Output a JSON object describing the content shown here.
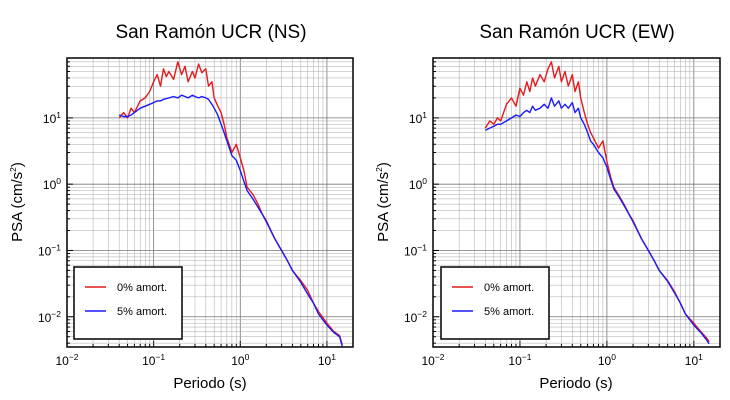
{
  "chart_data": [
    {
      "type": "line",
      "title": "San Ramón UCR (NS)",
      "xlabel": "Periodo (s)",
      "ylabel": "PSA (cm/s²)",
      "ylabel_main": "PSA (cm/s",
      "ylabel_sup": "2",
      "ylabel_close": ")",
      "xscale": "log",
      "yscale": "log",
      "xlim": [
        0.01,
        20
      ],
      "ylim": [
        0.0035,
        80
      ],
      "grid": true,
      "legend_position": "bottom-left",
      "xticks": [
        {
          "base": "10",
          "exp": "−2",
          "value": 0.01
        },
        {
          "base": "10",
          "exp": "−1",
          "value": 0.1
        },
        {
          "base": "10",
          "exp": "0",
          "value": 1
        },
        {
          "base": "10",
          "exp": "1",
          "value": 10
        }
      ],
      "yticks": [
        {
          "base": "10",
          "exp": "−2",
          "value": 0.01
        },
        {
          "base": "10",
          "exp": "−1",
          "value": 0.1
        },
        {
          "base": "10",
          "exp": "0",
          "value": 1
        },
        {
          "base": "10",
          "exp": "1",
          "value": 10
        }
      ],
      "x": [
        0.04,
        0.045,
        0.05,
        0.055,
        0.06,
        0.07,
        0.08,
        0.09,
        0.1,
        0.11,
        0.12,
        0.13,
        0.14,
        0.15,
        0.17,
        0.19,
        0.21,
        0.23,
        0.25,
        0.28,
        0.3,
        0.33,
        0.36,
        0.4,
        0.43,
        0.47,
        0.5,
        0.55,
        0.6,
        0.65,
        0.7,
        0.8,
        0.9,
        1.0,
        1.1,
        1.2,
        1.4,
        1.6,
        1.8,
        2.0,
        2.5,
        3.0,
        3.5,
        4.0,
        5.0,
        6.0,
        7.0,
        8.0,
        10.0,
        12.0,
        14.0,
        15.0
      ],
      "series": [
        {
          "name": "0% amort.",
          "color": "#e41a1c",
          "values": [
            10,
            12,
            10,
            14,
            12,
            18,
            20,
            25,
            35,
            45,
            30,
            55,
            42,
            50,
            38,
            70,
            45,
            60,
            35,
            50,
            40,
            65,
            48,
            55,
            30,
            35,
            20,
            15,
            12,
            8,
            5,
            3,
            4,
            2.5,
            1.6,
            0.9,
            0.7,
            0.5,
            0.35,
            0.28,
            0.15,
            0.1,
            0.07,
            0.05,
            0.035,
            0.025,
            0.016,
            0.012,
            0.008,
            0.006,
            0.0052,
            0.0038
          ]
        },
        {
          "name": "5% amort.",
          "color": "#1a1aff",
          "values": [
            11,
            10.5,
            10.5,
            11,
            12,
            14,
            15,
            16,
            17,
            18,
            18,
            19,
            19.5,
            20,
            21,
            20,
            22,
            21,
            20,
            22,
            21,
            20,
            21,
            20,
            19,
            16,
            14,
            11,
            8,
            6,
            4.5,
            2.7,
            2.3,
            1.6,
            1.1,
            0.8,
            0.6,
            0.45,
            0.35,
            0.27,
            0.15,
            0.1,
            0.07,
            0.05,
            0.033,
            0.022,
            0.016,
            0.011,
            0.0075,
            0.0058,
            0.005,
            0.0036
          ]
        }
      ]
    },
    {
      "type": "line",
      "title": "San Ramón UCR (EW)",
      "xlabel": "Periodo (s)",
      "ylabel": "PSA (cm/s²)",
      "ylabel_main": "PSA (cm/s",
      "ylabel_sup": "2",
      "ylabel_close": ")",
      "xscale": "log",
      "yscale": "log",
      "xlim": [
        0.01,
        20
      ],
      "ylim": [
        0.0035,
        80
      ],
      "grid": true,
      "legend_position": "bottom-left",
      "xticks": [
        {
          "base": "10",
          "exp": "−2",
          "value": 0.01
        },
        {
          "base": "10",
          "exp": "−1",
          "value": 0.1
        },
        {
          "base": "10",
          "exp": "0",
          "value": 1
        },
        {
          "base": "10",
          "exp": "1",
          "value": 10
        }
      ],
      "yticks": [
        {
          "base": "10",
          "exp": "−2",
          "value": 0.01
        },
        {
          "base": "10",
          "exp": "−1",
          "value": 0.1
        },
        {
          "base": "10",
          "exp": "0",
          "value": 1
        },
        {
          "base": "10",
          "exp": "1",
          "value": 10
        }
      ],
      "x": [
        0.04,
        0.045,
        0.05,
        0.055,
        0.06,
        0.07,
        0.08,
        0.09,
        0.1,
        0.11,
        0.12,
        0.13,
        0.14,
        0.15,
        0.17,
        0.19,
        0.21,
        0.23,
        0.25,
        0.28,
        0.3,
        0.33,
        0.36,
        0.4,
        0.43,
        0.47,
        0.5,
        0.55,
        0.6,
        0.65,
        0.7,
        0.8,
        0.9,
        1.0,
        1.1,
        1.2,
        1.4,
        1.6,
        1.8,
        2.0,
        2.5,
        3.0,
        3.5,
        4.0,
        5.0,
        6.0,
        7.0,
        8.0,
        10.0,
        12.0,
        14.0,
        15.0
      ],
      "series": [
        {
          "name": "0% amort.",
          "color": "#e41a1c",
          "values": [
            7,
            9,
            8,
            10,
            9,
            16,
            20,
            15,
            28,
            22,
            35,
            25,
            40,
            30,
            45,
            35,
            55,
            70,
            40,
            60,
            35,
            50,
            30,
            45,
            25,
            35,
            20,
            12,
            8,
            6,
            5,
            3.5,
            4.5,
            2.2,
            1.3,
            0.9,
            0.65,
            0.48,
            0.35,
            0.28,
            0.15,
            0.1,
            0.07,
            0.05,
            0.035,
            0.024,
            0.016,
            0.011,
            0.008,
            0.006,
            0.0048,
            0.0042
          ]
        },
        {
          "name": "5% amort.",
          "color": "#1a1aff",
          "values": [
            6.5,
            7,
            7.5,
            8,
            8,
            9,
            10,
            11,
            10.5,
            12,
            13,
            12,
            15,
            13,
            14,
            16,
            14,
            20,
            15,
            18,
            14,
            16,
            14,
            17,
            12,
            14,
            10,
            8,
            6,
            4.5,
            4,
            3,
            2.5,
            1.8,
            1.2,
            0.85,
            0.62,
            0.46,
            0.35,
            0.27,
            0.15,
            0.1,
            0.07,
            0.05,
            0.034,
            0.023,
            0.016,
            0.011,
            0.0075,
            0.0058,
            0.0045,
            0.0039
          ]
        }
      ]
    }
  ]
}
